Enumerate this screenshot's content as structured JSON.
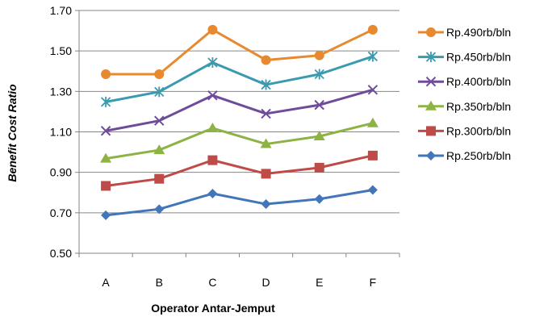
{
  "chart_data": {
    "type": "line",
    "title": "",
    "xlabel": "Operator Antar-Jemput",
    "ylabel": "Benefit Cost Ratio",
    "categories": [
      "A",
      "B",
      "C",
      "D",
      "E",
      "F"
    ],
    "ylim": [
      0.5,
      1.7
    ],
    "yticks": [
      "0.50",
      "0.70",
      "0.90",
      "1.10",
      "1.30",
      "1.50",
      "1.70"
    ],
    "grid": "horizontal",
    "legend_position": "right",
    "series": [
      {
        "name": "Rp.490rb/bln",
        "color": "#E8892F",
        "marker": "circle",
        "values": [
          1.385,
          1.385,
          1.605,
          1.455,
          1.478,
          1.605
        ]
      },
      {
        "name": "Rp.450rb/bln",
        "color": "#3A9AB0",
        "marker": "star",
        "values": [
          1.248,
          1.298,
          1.443,
          1.333,
          1.385,
          1.473
        ]
      },
      {
        "name": "Rp.400rb/bln",
        "color": "#6E4C9A",
        "marker": "x",
        "values": [
          1.105,
          1.155,
          1.28,
          1.19,
          1.233,
          1.308
        ]
      },
      {
        "name": "Rp.350rb/bln",
        "color": "#8DB344",
        "marker": "triangle",
        "values": [
          0.968,
          1.01,
          1.118,
          1.04,
          1.078,
          1.143
        ]
      },
      {
        "name": "Rp.300rb/bln",
        "color": "#BE4B48",
        "marker": "square",
        "values": [
          0.833,
          0.868,
          0.96,
          0.893,
          0.923,
          0.983
        ]
      },
      {
        "name": "Rp.250rb/bln",
        "color": "#4376B8",
        "marker": "diamond",
        "values": [
          0.688,
          0.718,
          0.795,
          0.743,
          0.768,
          0.813
        ]
      }
    ]
  }
}
